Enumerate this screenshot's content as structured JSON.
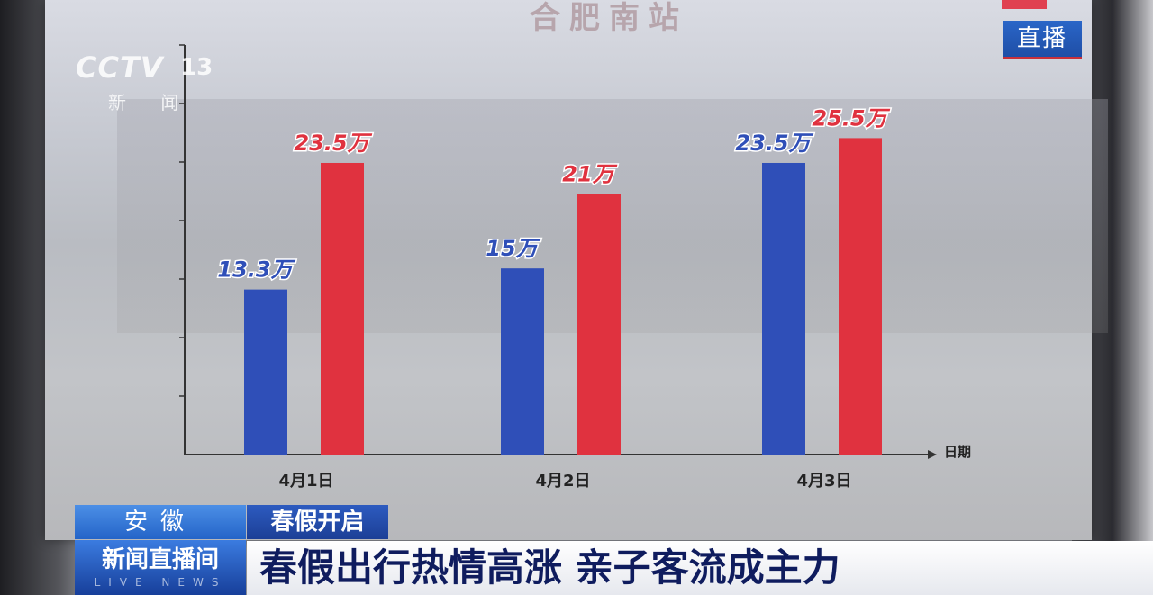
{
  "broadcast": {
    "channel_logo": "CCTV",
    "channel_number": "13",
    "channel_name": "新 闻",
    "live_badge": "直播",
    "region": "安徽",
    "topic": "春假开启",
    "program": "新闻直播间",
    "program_en": "LIVE NEWS",
    "headline": "春假出行热情高涨 亲子客流成主力"
  },
  "board": {
    "station_name": "合肥南站"
  },
  "chart_data": {
    "type": "bar",
    "title": "合肥南站",
    "xlabel": "日期",
    "ylabel": "",
    "categories": [
      "4月1日",
      "4月2日",
      "4月3日"
    ],
    "series": [
      {
        "color": "#2f4fb8",
        "values": [
          13.3,
          15,
          23.5
        ],
        "labels": [
          "13.3万",
          "15万",
          "23.5万"
        ]
      },
      {
        "color": "#e0323f",
        "values": [
          23.5,
          21,
          25.5
        ],
        "labels": [
          "23.5万",
          "21万",
          "25.5万"
        ]
      }
    ],
    "ylim": [
      0,
      33
    ],
    "grid": false
  }
}
